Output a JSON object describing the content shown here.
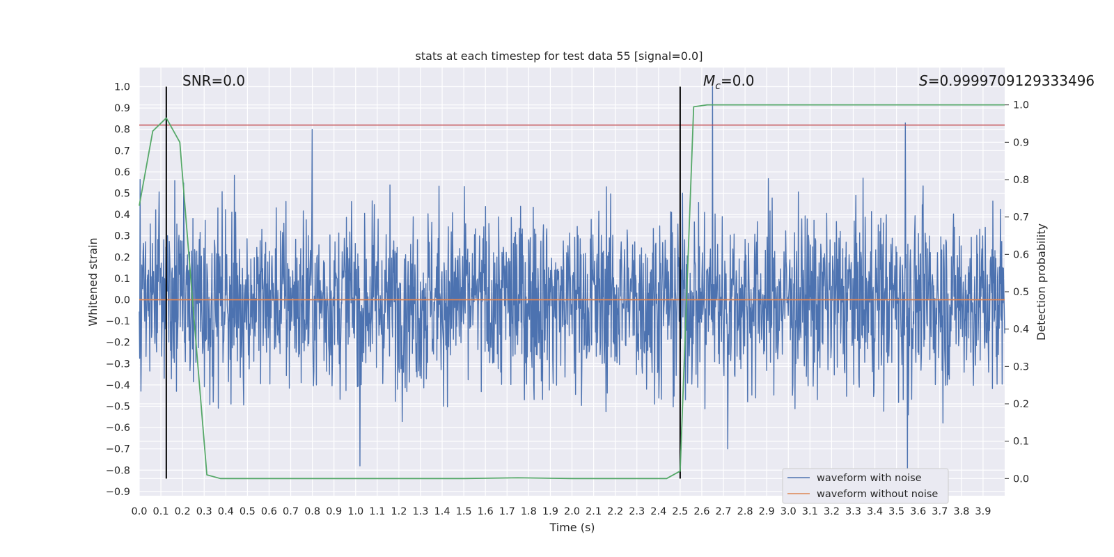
{
  "chart_data": {
    "type": "line",
    "title": "stats at each timestep for test data 55 [signal=0.0]",
    "xlabel": "Time (s)",
    "ylabel": "Whitened strain",
    "y2label": "Detection probability",
    "xlim": [
      0.0,
      4.0
    ],
    "ylim": [
      -0.92,
      1.09
    ],
    "y2lim": [
      -0.046,
      1.1
    ],
    "x_ticks": [
      "0.0",
      "0.1",
      "0.2",
      "0.3",
      "0.4",
      "0.5",
      "0.6",
      "0.7",
      "0.8",
      "0.9",
      "1.0",
      "1.1",
      "1.2",
      "1.3",
      "1.4",
      "1.5",
      "1.6",
      "1.7",
      "1.8",
      "1.9",
      "2.0",
      "2.1",
      "2.2",
      "2.3",
      "2.4",
      "2.5",
      "2.6",
      "2.7",
      "2.8",
      "2.9",
      "3.0",
      "3.1",
      "3.2",
      "3.3",
      "3.4",
      "3.5",
      "3.6",
      "3.7",
      "3.8",
      "3.9"
    ],
    "y_ticks": [
      "1.0",
      "0.9",
      "0.8",
      "0.7",
      "0.6",
      "0.5",
      "0.4",
      "0.3",
      "0.2",
      "0.1",
      "0.0",
      "−0.1",
      "−0.2",
      "−0.3",
      "−0.4",
      "−0.5",
      "−0.6",
      "−0.7",
      "−0.8",
      "−0.9"
    ],
    "y2_ticks": [
      "1.0",
      "0.9",
      "0.8",
      "0.7",
      "0.6",
      "0.5",
      "0.4",
      "0.3",
      "0.2",
      "0.1",
      "0.0"
    ],
    "annotations": {
      "snr": "SNR=0.0",
      "mc_symbol": "M",
      "mc_sub": "c",
      "mc_value": "=0.0",
      "s_symbol": "S",
      "s_value": "=0.9999709129333496"
    },
    "series": [
      {
        "name": "waveform with noise",
        "color": "#4c72b0",
        "note": "dense whitened noise, approx. range -0.8 to 1.0",
        "samples": 2048,
        "spikes": [
          {
            "x": 0.8,
            "y": 0.8
          },
          {
            "x": 1.02,
            "y": -0.78
          },
          {
            "x": 2.65,
            "y": 1.0
          },
          {
            "x": 2.72,
            "y": -0.7
          },
          {
            "x": 3.54,
            "y": 0.83
          },
          {
            "x": 3.55,
            "y": -0.8
          }
        ]
      },
      {
        "name": "waveform without noise",
        "color": "#dd8452",
        "x": [
          0.0,
          4.0
        ],
        "y": [
          0.0,
          0.0
        ]
      },
      {
        "name": "detection probability",
        "axis": "right",
        "color": "#55a868",
        "x": [
          0.0,
          0.0625,
          0.125,
          0.1875,
          0.25,
          0.3125,
          0.375,
          0.4375,
          1.0,
          1.5,
          1.75,
          2.0,
          2.25,
          2.4375,
          2.5,
          2.5625,
          2.625,
          4.0
        ],
        "y": [
          0.73,
          0.93,
          0.965,
          0.9,
          0.45,
          0.01,
          0.0,
          0.0,
          0.0,
          0.0,
          0.002,
          0.0,
          0.0,
          0.0,
          0.02,
          0.995,
          1.0,
          1.0
        ]
      }
    ],
    "hlines": [
      {
        "y": 0.82,
        "color": "#c44e52"
      }
    ],
    "vlines": [
      {
        "x": 0.125,
        "color": "#000000"
      },
      {
        "x": 2.5,
        "color": "#000000"
      }
    ],
    "legend": {
      "position": "lower-right",
      "entries": [
        "waveform with noise",
        "waveform without noise"
      ]
    }
  }
}
